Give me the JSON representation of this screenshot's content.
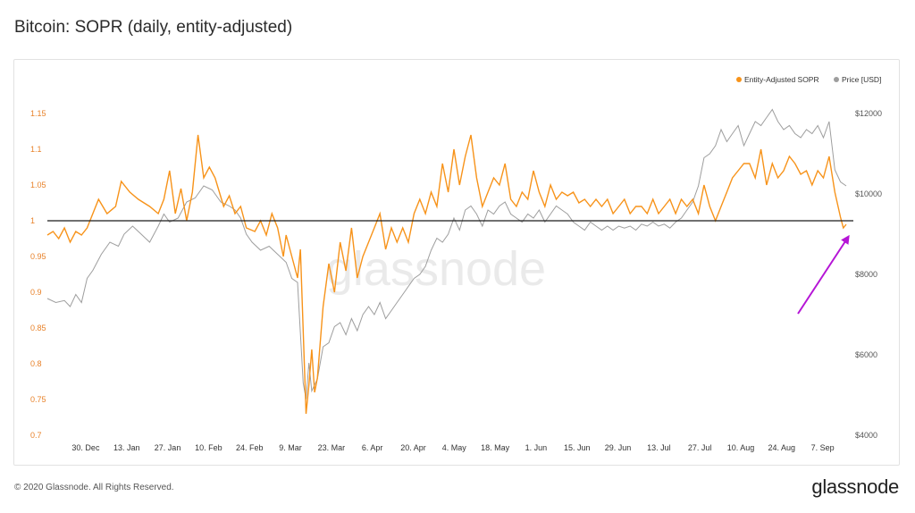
{
  "page": {
    "title": "Bitcoin: SOPR (daily, entity-adjusted)",
    "copyright": "© 2020 Glassnode. All Rights Reserved.",
    "brand": "glassnode",
    "watermark": "glassnode"
  },
  "colors": {
    "sopr": "#f7931a",
    "price": "#9e9e9e",
    "baseline": "#1a1a1a",
    "arrow": "#b515d6",
    "axis_left": "#e8822a",
    "axis_right": "#555555"
  },
  "chart_data": {
    "type": "line",
    "title": "Bitcoin: SOPR (daily, entity-adjusted)",
    "legend_position": "top-right",
    "legend": [
      "Entity-Adjusted SOPR",
      "Price [USD]"
    ],
    "x_ticks": [
      "30. Dec",
      "13. Jan",
      "27. Jan",
      "10. Feb",
      "24. Feb",
      "9. Mar",
      "23. Mar",
      "6. Apr",
      "20. Apr",
      "4. May",
      "18. May",
      "1. Jun",
      "15. Jun",
      "29. Jun",
      "13. Jul",
      "27. Jul",
      "10. Aug",
      "24. Aug",
      "7. Sep"
    ],
    "y_left": {
      "ticks": [
        "0.7",
        "0.75",
        "0.8",
        "0.85",
        "0.9",
        "0.95",
        "1",
        "1.05",
        "1.1",
        "1.15"
      ],
      "range": [
        0.7,
        1.15
      ]
    },
    "y_right": {
      "ticks": [
        "$4000",
        "$6000",
        "$8000",
        "$10000",
        "$12000"
      ],
      "range": [
        4000,
        12000
      ]
    },
    "baseline_value": 1,
    "series": [
      {
        "name": "Entity-Adjusted SOPR",
        "axis": "left",
        "keyframes": [
          [
            0,
            0.98
          ],
          [
            2,
            0.985
          ],
          [
            4,
            0.975
          ],
          [
            6,
            0.99
          ],
          [
            8,
            0.97
          ],
          [
            10,
            0.985
          ],
          [
            12,
            0.98
          ],
          [
            14,
            0.99
          ],
          [
            18,
            1.03
          ],
          [
            21,
            1.01
          ],
          [
            24,
            1.02
          ],
          [
            26,
            1.055
          ],
          [
            29,
            1.04
          ],
          [
            32,
            1.03
          ],
          [
            36,
            1.02
          ],
          [
            39,
            1.01
          ],
          [
            41,
            1.03
          ],
          [
            43,
            1.07
          ],
          [
            45,
            1.01
          ],
          [
            47,
            1.045
          ],
          [
            49,
            1.0
          ],
          [
            51,
            1.04
          ],
          [
            53,
            1.12
          ],
          [
            55,
            1.06
          ],
          [
            57,
            1.075
          ],
          [
            59,
            1.06
          ],
          [
            62,
            1.02
          ],
          [
            64,
            1.035
          ],
          [
            66,
            1.01
          ],
          [
            68,
            1.02
          ],
          [
            70,
            0.99
          ],
          [
            73,
            0.985
          ],
          [
            75,
            1.0
          ],
          [
            77,
            0.98
          ],
          [
            79,
            1.01
          ],
          [
            81,
            0.99
          ],
          [
            83,
            0.95
          ],
          [
            84,
            0.98
          ],
          [
            86,
            0.95
          ],
          [
            88,
            0.92
          ],
          [
            89,
            0.96
          ],
          [
            91,
            0.73
          ],
          [
            92,
            0.77
          ],
          [
            93,
            0.82
          ],
          [
            94,
            0.76
          ],
          [
            95,
            0.78
          ],
          [
            97,
            0.88
          ],
          [
            99,
            0.94
          ],
          [
            101,
            0.9
          ],
          [
            103,
            0.97
          ],
          [
            105,
            0.93
          ],
          [
            107,
            0.99
          ],
          [
            109,
            0.92
          ],
          [
            111,
            0.95
          ],
          [
            113,
            0.97
          ],
          [
            115,
            0.99
          ],
          [
            117,
            1.01
          ],
          [
            119,
            0.96
          ],
          [
            121,
            0.99
          ],
          [
            123,
            0.97
          ],
          [
            125,
            0.99
          ],
          [
            127,
            0.97
          ],
          [
            129,
            1.01
          ],
          [
            131,
            1.03
          ],
          [
            133,
            1.01
          ],
          [
            135,
            1.04
          ],
          [
            137,
            1.02
          ],
          [
            139,
            1.08
          ],
          [
            141,
            1.04
          ],
          [
            143,
            1.1
          ],
          [
            145,
            1.05
          ],
          [
            147,
            1.09
          ],
          [
            149,
            1.12
          ],
          [
            151,
            1.06
          ],
          [
            153,
            1.02
          ],
          [
            155,
            1.04
          ],
          [
            157,
            1.06
          ],
          [
            159,
            1.05
          ],
          [
            161,
            1.08
          ],
          [
            163,
            1.03
          ],
          [
            165,
            1.02
          ],
          [
            167,
            1.04
          ],
          [
            169,
            1.03
          ],
          [
            171,
            1.07
          ],
          [
            173,
            1.04
          ],
          [
            175,
            1.02
          ],
          [
            177,
            1.05
          ],
          [
            179,
            1.03
          ],
          [
            181,
            1.04
          ],
          [
            183,
            1.035
          ],
          [
            185,
            1.04
          ],
          [
            187,
            1.025
          ],
          [
            189,
            1.03
          ],
          [
            191,
            1.02
          ],
          [
            193,
            1.03
          ],
          [
            195,
            1.02
          ],
          [
            197,
            1.03
          ],
          [
            199,
            1.01
          ],
          [
            201,
            1.02
          ],
          [
            203,
            1.03
          ],
          [
            205,
            1.01
          ],
          [
            207,
            1.02
          ],
          [
            209,
            1.02
          ],
          [
            211,
            1.01
          ],
          [
            213,
            1.03
          ],
          [
            215,
            1.01
          ],
          [
            217,
            1.02
          ],
          [
            219,
            1.03
          ],
          [
            221,
            1.01
          ],
          [
            223,
            1.03
          ],
          [
            225,
            1.02
          ],
          [
            227,
            1.03
          ],
          [
            229,
            1.01
          ],
          [
            231,
            1.05
          ],
          [
            233,
            1.02
          ],
          [
            235,
            1.0
          ],
          [
            237,
            1.02
          ],
          [
            239,
            1.04
          ],
          [
            241,
            1.06
          ],
          [
            243,
            1.07
          ],
          [
            245,
            1.08
          ],
          [
            247,
            1.08
          ],
          [
            249,
            1.06
          ],
          [
            251,
            1.1
          ],
          [
            253,
            1.05
          ],
          [
            255,
            1.08
          ],
          [
            257,
            1.06
          ],
          [
            259,
            1.07
          ],
          [
            261,
            1.09
          ],
          [
            263,
            1.08
          ],
          [
            265,
            1.065
          ],
          [
            267,
            1.07
          ],
          [
            269,
            1.05
          ],
          [
            271,
            1.07
          ],
          [
            273,
            1.06
          ],
          [
            275,
            1.09
          ],
          [
            277,
            1.04
          ],
          [
            279,
            1.005
          ],
          [
            280,
            0.99
          ],
          [
            281,
            0.995
          ]
        ]
      },
      {
        "name": "Price [USD]",
        "axis": "right",
        "keyframes": [
          [
            0,
            7400
          ],
          [
            3,
            7300
          ],
          [
            6,
            7350
          ],
          [
            8,
            7200
          ],
          [
            10,
            7500
          ],
          [
            12,
            7300
          ],
          [
            14,
            7900
          ],
          [
            16,
            8100
          ],
          [
            19,
            8500
          ],
          [
            22,
            8800
          ],
          [
            25,
            8700
          ],
          [
            27,
            9000
          ],
          [
            30,
            9200
          ],
          [
            33,
            9000
          ],
          [
            36,
            8800
          ],
          [
            39,
            9200
          ],
          [
            41,
            9500
          ],
          [
            43,
            9300
          ],
          [
            46,
            9400
          ],
          [
            49,
            9800
          ],
          [
            52,
            9900
          ],
          [
            55,
            10200
          ],
          [
            58,
            10100
          ],
          [
            61,
            9800
          ],
          [
            64,
            9700
          ],
          [
            66,
            9600
          ],
          [
            68,
            9400
          ],
          [
            70,
            9000
          ],
          [
            72,
            8800
          ],
          [
            75,
            8600
          ],
          [
            78,
            8700
          ],
          [
            81,
            8500
          ],
          [
            84,
            8300
          ],
          [
            86,
            7900
          ],
          [
            88,
            7800
          ],
          [
            90,
            5300
          ],
          [
            91,
            4900
          ],
          [
            92,
            5800
          ],
          [
            93,
            5100
          ],
          [
            95,
            5400
          ],
          [
            97,
            6200
          ],
          [
            99,
            6300
          ],
          [
            101,
            6700
          ],
          [
            103,
            6800
          ],
          [
            105,
            6500
          ],
          [
            107,
            6900
          ],
          [
            109,
            6600
          ],
          [
            111,
            7000
          ],
          [
            113,
            7200
          ],
          [
            115,
            7000
          ],
          [
            117,
            7300
          ],
          [
            119,
            6900
          ],
          [
            121,
            7100
          ],
          [
            123,
            7300
          ],
          [
            125,
            7500
          ],
          [
            127,
            7700
          ],
          [
            129,
            7900
          ],
          [
            131,
            8000
          ],
          [
            133,
            8200
          ],
          [
            135,
            8600
          ],
          [
            137,
            8900
          ],
          [
            139,
            8800
          ],
          [
            141,
            9000
          ],
          [
            143,
            9400
          ],
          [
            145,
            9100
          ],
          [
            147,
            9600
          ],
          [
            149,
            9700
          ],
          [
            151,
            9500
          ],
          [
            153,
            9200
          ],
          [
            155,
            9600
          ],
          [
            157,
            9500
          ],
          [
            159,
            9700
          ],
          [
            161,
            9800
          ],
          [
            163,
            9500
          ],
          [
            165,
            9400
          ],
          [
            167,
            9300
          ],
          [
            169,
            9500
          ],
          [
            171,
            9400
          ],
          [
            173,
            9600
          ],
          [
            175,
            9300
          ],
          [
            177,
            9500
          ],
          [
            179,
            9700
          ],
          [
            181,
            9600
          ],
          [
            183,
            9500
          ],
          [
            185,
            9300
          ],
          [
            187,
            9200
          ],
          [
            189,
            9100
          ],
          [
            191,
            9300
          ],
          [
            193,
            9200
          ],
          [
            195,
            9100
          ],
          [
            197,
            9200
          ],
          [
            199,
            9100
          ],
          [
            201,
            9200
          ],
          [
            203,
            9150
          ],
          [
            205,
            9200
          ],
          [
            207,
            9100
          ],
          [
            209,
            9250
          ],
          [
            211,
            9200
          ],
          [
            213,
            9300
          ],
          [
            215,
            9200
          ],
          [
            217,
            9250
          ],
          [
            219,
            9150
          ],
          [
            221,
            9300
          ],
          [
            223,
            9400
          ],
          [
            225,
            9600
          ],
          [
            227,
            9800
          ],
          [
            229,
            10200
          ],
          [
            231,
            10900
          ],
          [
            233,
            11000
          ],
          [
            235,
            11200
          ],
          [
            237,
            11600
          ],
          [
            239,
            11300
          ],
          [
            241,
            11500
          ],
          [
            243,
            11700
          ],
          [
            245,
            11200
          ],
          [
            247,
            11500
          ],
          [
            249,
            11800
          ],
          [
            251,
            11700
          ],
          [
            253,
            11900
          ],
          [
            255,
            12100
          ],
          [
            257,
            11800
          ],
          [
            259,
            11600
          ],
          [
            261,
            11700
          ],
          [
            263,
            11500
          ],
          [
            265,
            11400
          ],
          [
            267,
            11600
          ],
          [
            269,
            11500
          ],
          [
            271,
            11700
          ],
          [
            273,
            11400
          ],
          [
            275,
            11800
          ],
          [
            277,
            10600
          ],
          [
            279,
            10300
          ],
          [
            281,
            10200
          ]
        ]
      }
    ]
  }
}
